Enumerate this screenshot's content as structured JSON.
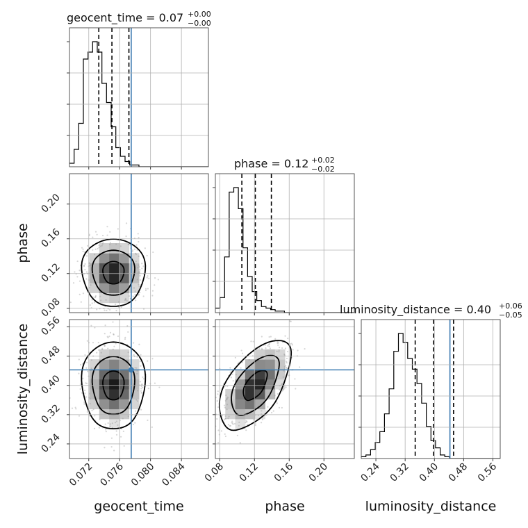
{
  "chart_data": {
    "type": "corner",
    "parameters": [
      "geocent_time",
      "phase",
      "luminosity_distance"
    ],
    "titles": [
      {
        "label": "geocent_time = 0.07",
        "plus": "+0.00",
        "minus": "−0.00"
      },
      {
        "label": "phase = 0.12",
        "plus": "+0.02",
        "minus": "−0.02"
      },
      {
        "label": "luminosity_distance = 0.40",
        "plus": "+0.06",
        "minus": "−0.05"
      }
    ],
    "axes": {
      "geocent_time": {
        "range": [
          0.0695,
          0.0875
        ],
        "ticks": [
          "0.072",
          "0.076",
          "0.080",
          "0.084"
        ],
        "tick_values": [
          0.072,
          0.076,
          0.08,
          0.084
        ]
      },
      "phase": {
        "range": [
          0.075,
          0.235
        ],
        "ticks": [
          "0.08",
          "0.12",
          "0.16",
          "0.20"
        ],
        "tick_values": [
          0.08,
          0.12,
          0.16,
          0.2
        ]
      },
      "luminosity_distance": {
        "range": [
          0.2,
          0.58
        ],
        "ticks": [
          "0.24",
          "0.32",
          "0.40",
          "0.48",
          "0.56"
        ],
        "tick_values": [
          0.24,
          0.32,
          0.4,
          0.48,
          0.56
        ]
      }
    },
    "truths": {
      "geocent_time": 0.0775,
      "phase": null,
      "luminosity_distance": 0.4425
    },
    "quantiles": {
      "geocent_time": [
        0.0733,
        0.075,
        0.0772
      ],
      "phase": [
        0.1055,
        0.121,
        0.1395
      ],
      "luminosity_distance": [
        0.3475,
        0.3975,
        0.4525
      ]
    },
    "histograms": {
      "geocent_time": {
        "bin_start": 0.0695,
        "bin_width": 0.0006,
        "counts": [
          2,
          10,
          25,
          62,
          66,
          72,
          66,
          48,
          37,
          23,
          11,
          6,
          3,
          1,
          1,
          0,
          0,
          0,
          0,
          0,
          0,
          0,
          0,
          0,
          0,
          0,
          0,
          0,
          0,
          0
        ]
      },
      "phase": {
        "bin_start": 0.075,
        "bin_width": 0.0053,
        "counts": [
          3,
          10,
          37,
          80,
          83,
          69,
          43,
          24,
          14,
          8,
          4,
          3,
          2,
          1,
          1,
          0,
          0,
          0,
          0,
          0,
          0,
          0,
          0,
          0,
          0,
          0,
          0,
          0,
          0,
          0
        ]
      },
      "luminosity_distance": {
        "bin_start": 0.2,
        "bin_width": 0.0127,
        "counts": [
          1,
          2,
          5,
          9,
          15,
          25,
          39,
          60,
          70,
          65,
          56,
          50,
          42,
          31,
          18,
          10,
          6,
          2,
          1,
          0,
          0,
          0,
          0,
          0,
          0,
          0,
          0,
          0,
          0,
          0
        ]
      }
    },
    "grid": true
  }
}
